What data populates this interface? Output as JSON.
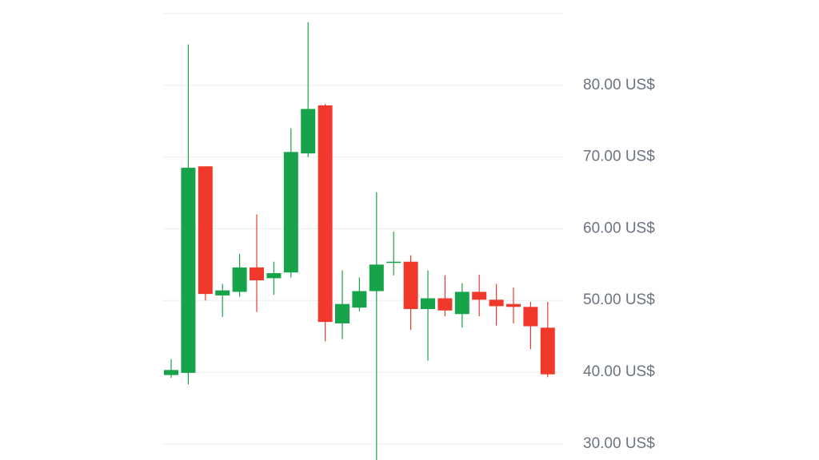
{
  "chart_data": {
    "type": "candlestick",
    "title": "",
    "xlabel": "",
    "ylabel": "",
    "y_unit": "US$",
    "ylim": [
      28,
      90
    ],
    "y_ticks": [
      30,
      40,
      50,
      60,
      70,
      80
    ],
    "y_tick_labels": [
      "30.00 US$",
      "40.00 US$",
      "50.00 US$",
      "60.00 US$",
      "70.00 US$",
      "80.00 US$"
    ],
    "y_axis_position": "right",
    "grid": true,
    "legend": "none",
    "colors": {
      "up": "#16a34a",
      "down": "#f0392b",
      "grid": "#eceef1",
      "tick_text": "#6b7280"
    },
    "candles": [
      {
        "open": 39.6,
        "high": 41.8,
        "low": 39.2,
        "close": 40.3
      },
      {
        "open": 39.9,
        "high": 85.7,
        "low": 38.3,
        "close": 68.5
      },
      {
        "open": 68.7,
        "high": 68.7,
        "low": 50.0,
        "close": 50.9
      },
      {
        "open": 50.7,
        "high": 52.3,
        "low": 47.7,
        "close": 51.4
      },
      {
        "open": 51.2,
        "high": 56.5,
        "low": 50.5,
        "close": 54.6
      },
      {
        "open": 54.6,
        "high": 62.0,
        "low": 48.4,
        "close": 52.8
      },
      {
        "open": 53.1,
        "high": 55.4,
        "low": 50.8,
        "close": 53.8
      },
      {
        "open": 53.9,
        "high": 74.0,
        "low": 53.2,
        "close": 70.7
      },
      {
        "open": 70.5,
        "high": 88.8,
        "low": 70.0,
        "close": 76.7
      },
      {
        "open": 77.2,
        "high": 77.4,
        "low": 44.3,
        "close": 47.0
      },
      {
        "open": 46.8,
        "high": 54.2,
        "low": 44.6,
        "close": 49.5
      },
      {
        "open": 49.0,
        "high": 53.2,
        "low": 48.5,
        "close": 51.3
      },
      {
        "open": 51.3,
        "high": 65.1,
        "low": 27.6,
        "close": 55.0
      },
      {
        "open": 55.3,
        "high": 59.6,
        "low": 53.5,
        "close": 55.4
      },
      {
        "open": 55.4,
        "high": 56.3,
        "low": 45.9,
        "close": 48.8
      },
      {
        "open": 48.8,
        "high": 54.2,
        "low": 41.6,
        "close": 50.3
      },
      {
        "open": 50.3,
        "high": 53.5,
        "low": 47.8,
        "close": 48.6
      },
      {
        "open": 48.1,
        "high": 52.4,
        "low": 46.2,
        "close": 51.2
      },
      {
        "open": 51.2,
        "high": 53.6,
        "low": 47.8,
        "close": 50.1
      },
      {
        "open": 50.1,
        "high": 52.3,
        "low": 46.5,
        "close": 49.2
      },
      {
        "open": 49.5,
        "high": 51.8,
        "low": 46.8,
        "close": 49.1
      },
      {
        "open": 49.1,
        "high": 49.8,
        "low": 43.2,
        "close": 46.4
      },
      {
        "open": 46.2,
        "high": 49.8,
        "low": 39.3,
        "close": 39.7
      }
    ]
  }
}
